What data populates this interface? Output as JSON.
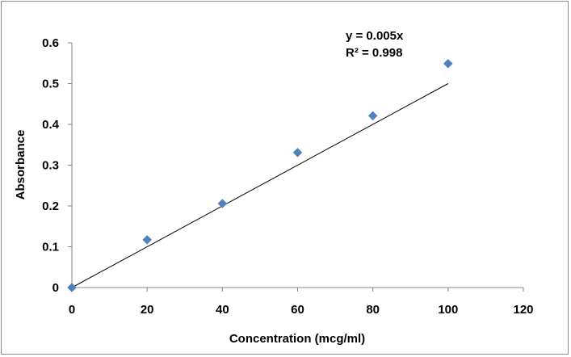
{
  "chart_data": {
    "type": "scatter",
    "xlabel": "Concentration (mcg/ml)",
    "ylabel": "Absorbance",
    "xlim": [
      0,
      120
    ],
    "ylim": [
      0,
      0.6
    ],
    "x_ticks": [
      "0",
      "20",
      "40",
      "60",
      "80",
      "100",
      "120"
    ],
    "y_ticks": [
      "0",
      "0.1",
      "0.2",
      "0.3",
      "0.4",
      "0.5",
      "0.6"
    ],
    "series": [
      {
        "x": [
          0,
          20,
          40,
          60,
          80,
          100
        ],
        "values": [
          0,
          0.117,
          0.206,
          0.331,
          0.421,
          0.549
        ],
        "marker": "diamond",
        "color": "#4f81bd"
      }
    ],
    "trendline": {
      "type": "linear",
      "slope": 0.005,
      "intercept": 0,
      "color": "#000000"
    },
    "annotations": [
      "y = 0.005x",
      "R² = 0.998"
    ],
    "grid": false,
    "legend": "none"
  }
}
